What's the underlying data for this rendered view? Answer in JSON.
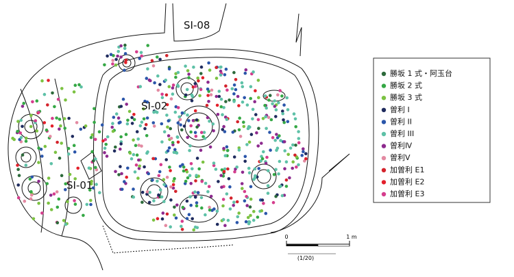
{
  "labels": [
    "SI-08",
    "SI-02",
    "SI-01"
  ],
  "legend": [
    {
      "name": "勝坂 1 式・阿玉台",
      "color": "#2d6a3b"
    },
    {
      "name": "勝坂 2 式",
      "color": "#35a845"
    },
    {
      "name": "勝坂 3 式",
      "color": "#7cc242"
    },
    {
      "name": "曽利 Ⅰ",
      "color": "#1f2b5e"
    },
    {
      "name": "曽利 II",
      "color": "#2b56aa"
    },
    {
      "name": "曽利 III",
      "color": "#5ec1a7"
    },
    {
      "name": "曽利Ⅳ",
      "color": "#8d2a8e"
    },
    {
      "name": "曽利Ⅴ",
      "color": "#e38aa2"
    },
    {
      "name": "加曽利 E1",
      "color": "#d4232c"
    },
    {
      "name": "加曽利 E2",
      "color": "#e3202b"
    },
    {
      "name": "加曽利 E3",
      "color": "#d53d8d"
    }
  ],
  "scale": {
    "start": "0",
    "end": "1 m",
    "ratio": "(1/20)"
  }
}
